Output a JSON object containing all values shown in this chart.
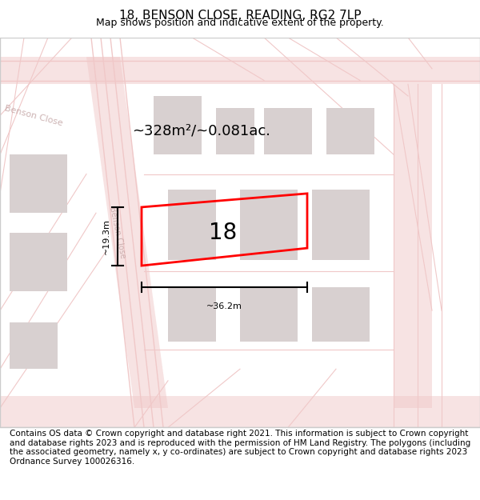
{
  "title": "18, BENSON CLOSE, READING, RG2 7LP",
  "subtitle": "Map shows position and indicative extent of the property.",
  "footer": "Contains OS data © Crown copyright and database right 2021. This information is subject to Crown copyright and database rights 2023 and is reproduced with the permission of HM Land Registry. The polygons (including the associated geometry, namely x, y co-ordinates) are subject to Crown copyright and database rights 2023 Ordnance Survey 100026316.",
  "area_label": "~328m²/~0.081ac.",
  "plot_number": "18",
  "dim_width": "~36.2m",
  "dim_height": "~19.3m",
  "bg_color": "#f5f0f0",
  "map_bg": "#ffffff",
  "road_color": "#f0c8c8",
  "building_color": "#d8d0d0",
  "plot_outline_color": "#ff0000",
  "dim_line_color": "#000000",
  "title_fontsize": 11,
  "subtitle_fontsize": 9,
  "footer_fontsize": 7.5
}
